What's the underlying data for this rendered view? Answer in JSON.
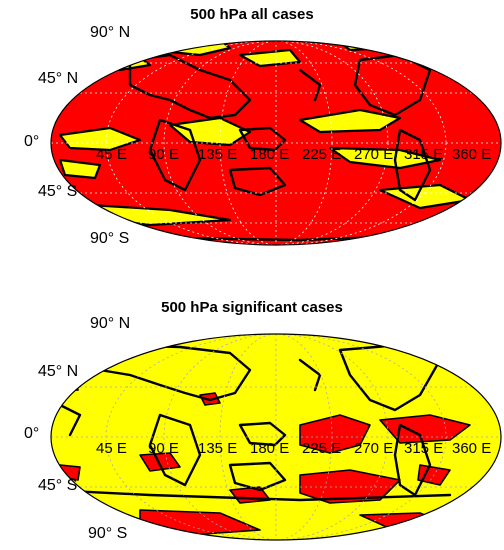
{
  "panels": [
    {
      "title": "500 hPa all cases",
      "lat_labels": [
        "90° N",
        "45° N",
        "0°",
        "45° S",
        "90° S"
      ],
      "lon_labels": [
        "45 E",
        "90 E",
        "135 E",
        "180 E",
        "225 E",
        "270 E",
        "315 E",
        "360 E"
      ],
      "ocean_color": "#ff0000",
      "land_color": "#ffff00"
    },
    {
      "title": "500 hPa significant cases",
      "lat_labels": [
        "90° N",
        "45° N",
        "0°",
        "45° S",
        "90° S"
      ],
      "lon_labels": [
        "45 E",
        "90 E",
        "135 E",
        "180 E",
        "225 E",
        "270 E",
        "315 E",
        "360 E"
      ],
      "ocean_color": "#ffff00",
      "land_color": "#ff0000"
    }
  ]
}
